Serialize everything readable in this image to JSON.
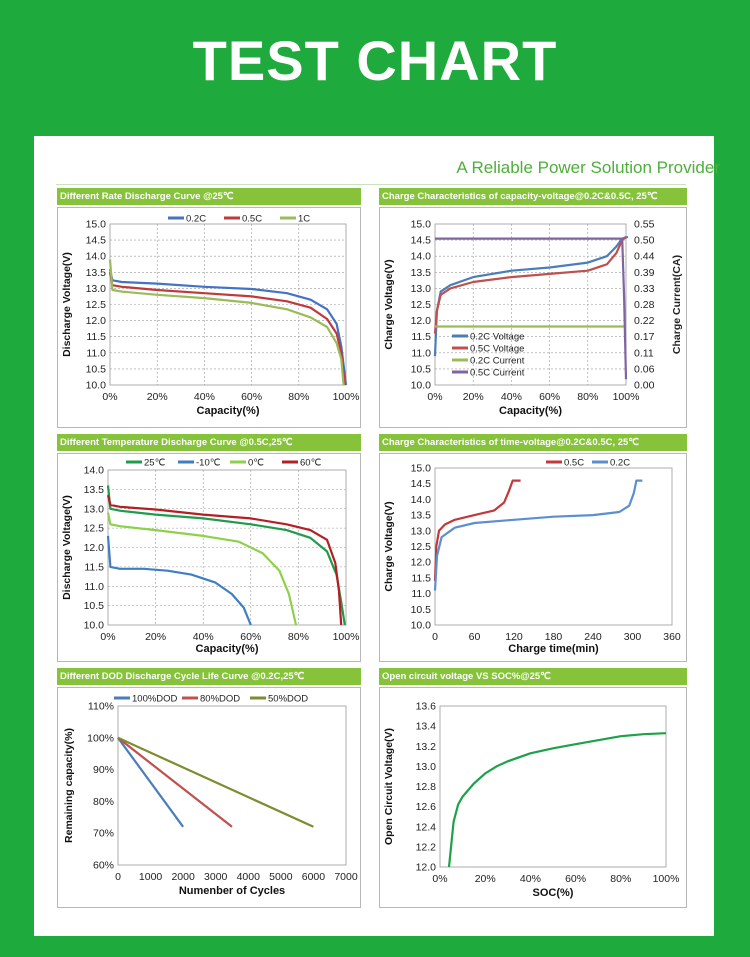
{
  "header": {
    "title": "TEST CHART"
  },
  "tagline": "A Reliable Power Solution Provider",
  "chart_data": [
    {
      "type": "line",
      "title": "Different Rate Discharge Curve @25℃",
      "xlabel": "Capacity(%)",
      "ylabel": "Discharge Voltage(V)",
      "xlim": [
        0,
        100
      ],
      "ylim": [
        10.0,
        15.0
      ],
      "xticks": [
        "0%",
        "20%",
        "40%",
        "60%",
        "80%",
        "100%"
      ],
      "yticks": [
        "10.0",
        "10.5",
        "11.0",
        "11.5",
        "12.0",
        "12.5",
        "13.0",
        "13.5",
        "14.0",
        "14.5",
        "15.0"
      ],
      "grid": true,
      "legend": "top",
      "series": [
        {
          "name": "0.2C",
          "color": "#4472c4",
          "points": [
            [
              0,
              13.6
            ],
            [
              1,
              13.25
            ],
            [
              5,
              13.2
            ],
            [
              20,
              13.15
            ],
            [
              40,
              13.05
            ],
            [
              60,
              12.98
            ],
            [
              75,
              12.85
            ],
            [
              85,
              12.65
            ],
            [
              92,
              12.35
            ],
            [
              96,
              11.9
            ],
            [
              98,
              11.2
            ],
            [
              100,
              10.0
            ]
          ]
        },
        {
          "name": "0.5C",
          "color": "#c0393b",
          "points": [
            [
              0,
              13.5
            ],
            [
              1,
              13.1
            ],
            [
              5,
              13.05
            ],
            [
              20,
              12.95
            ],
            [
              40,
              12.85
            ],
            [
              60,
              12.75
            ],
            [
              75,
              12.6
            ],
            [
              85,
              12.4
            ],
            [
              92,
              12.05
            ],
            [
              96,
              11.6
            ],
            [
              98,
              11.0
            ],
            [
              99.5,
              10.0
            ]
          ]
        },
        {
          "name": "1C",
          "color": "#9bbb59",
          "points": [
            [
              0,
              13.9
            ],
            [
              1,
              12.95
            ],
            [
              5,
              12.9
            ],
            [
              20,
              12.8
            ],
            [
              40,
              12.7
            ],
            [
              60,
              12.55
            ],
            [
              75,
              12.35
            ],
            [
              85,
              12.1
            ],
            [
              92,
              11.8
            ],
            [
              96,
              11.3
            ],
            [
              98,
              10.8
            ],
            [
              99,
              10.0
            ]
          ]
        }
      ]
    },
    {
      "type": "line",
      "title": "Charge  Characteristics of capacity-voltage@0.2C&0.5C, 25℃",
      "xlabel": "Capacity(%)",
      "ylabel": "Charge Voltage(V)",
      "y2label": "Charge Current(CA)",
      "xlim": [
        0,
        100
      ],
      "ylim": [
        10.0,
        15.0
      ],
      "y2lim": [
        0.0,
        0.55
      ],
      "xticks": [
        "0%",
        "20%",
        "40%",
        "60%",
        "80%",
        "100%"
      ],
      "yticks": [
        "10.0",
        "10.5",
        "11.0",
        "11.5",
        "12.0",
        "12.5",
        "13.0",
        "13.5",
        "14.0",
        "14.5",
        "15.0"
      ],
      "y2ticks": [
        "0.00",
        "0.06",
        "0.11",
        "0.17",
        "0.22",
        "0.28",
        "0.33",
        "0.39",
        "0.44",
        "0.50",
        "0.55"
      ],
      "grid": true,
      "legend": "center-left",
      "series": [
        {
          "name": "0.2C Voltage",
          "color": "#4a7ebb",
          "axis": "y",
          "points": [
            [
              0,
              10.9
            ],
            [
              1,
              12.3
            ],
            [
              3,
              12.9
            ],
            [
              8,
              13.1
            ],
            [
              20,
              13.35
            ],
            [
              40,
              13.55
            ],
            [
              60,
              13.65
            ],
            [
              80,
              13.8
            ],
            [
              90,
              14.0
            ],
            [
              95,
              14.3
            ],
            [
              98,
              14.55
            ],
            [
              101,
              14.6
            ]
          ]
        },
        {
          "name": "0.5C Voltage",
          "color": "#c0504d",
          "axis": "y",
          "points": [
            [
              0,
              11.6
            ],
            [
              1,
              12.3
            ],
            [
              3,
              12.8
            ],
            [
              8,
              13.0
            ],
            [
              20,
              13.2
            ],
            [
              40,
              13.35
            ],
            [
              60,
              13.45
            ],
            [
              80,
              13.55
            ],
            [
              90,
              13.75
            ],
            [
              95,
              14.1
            ],
            [
              98,
              14.5
            ],
            [
              100,
              14.6
            ]
          ]
        },
        {
          "name": "0.2C Current",
          "color": "#9bbb59",
          "axis": "y2",
          "points": [
            [
              0,
              0.2
            ],
            [
              99,
              0.2
            ]
          ]
        },
        {
          "name": "0.5C Current",
          "color": "#8064a2",
          "axis": "y2",
          "points": [
            [
              0,
              0.5
            ],
            [
              98,
              0.5
            ],
            [
              99,
              0.3
            ],
            [
              100,
              0.02
            ]
          ]
        }
      ]
    },
    {
      "type": "line",
      "title": "Different Temperature Discharge Curve @0.5C,25℃",
      "xlabel": "Capacity(%)",
      "ylabel": "Discharge Voltage(V)",
      "xlim": [
        0,
        100
      ],
      "ylim": [
        10.0,
        14.0
      ],
      "xticks": [
        "0%",
        "20%",
        "40%",
        "60%",
        "80%",
        "100%"
      ],
      "yticks": [
        "10.0",
        "10.5",
        "11.0",
        "11.5",
        "12.0",
        "12.5",
        "13.0",
        "13.5",
        "14.0"
      ],
      "grid": true,
      "legend": "top",
      "series": [
        {
          "name": "25℃",
          "color": "#1f9b4c",
          "points": [
            [
              0,
              13.6
            ],
            [
              1,
              13.0
            ],
            [
              5,
              12.95
            ],
            [
              20,
              12.85
            ],
            [
              40,
              12.75
            ],
            [
              60,
              12.6
            ],
            [
              75,
              12.45
            ],
            [
              85,
              12.25
            ],
            [
              92,
              11.9
            ],
            [
              96,
              11.3
            ],
            [
              98,
              10.6
            ],
            [
              99.5,
              10.0
            ]
          ]
        },
        {
          "name": "-10℃",
          "color": "#3e7fc4",
          "points": [
            [
              0,
              12.3
            ],
            [
              1,
              11.5
            ],
            [
              5,
              11.45
            ],
            [
              15,
              11.45
            ],
            [
              25,
              11.4
            ],
            [
              35,
              11.3
            ],
            [
              45,
              11.1
            ],
            [
              52,
              10.8
            ],
            [
              57,
              10.45
            ],
            [
              60,
              10.0
            ]
          ]
        },
        {
          "name": "0℃",
          "color": "#8fd04a",
          "points": [
            [
              0,
              12.9
            ],
            [
              1,
              12.6
            ],
            [
              5,
              12.55
            ],
            [
              20,
              12.45
            ],
            [
              40,
              12.3
            ],
            [
              55,
              12.15
            ],
            [
              65,
              11.85
            ],
            [
              72,
              11.4
            ],
            [
              76,
              10.8
            ],
            [
              79,
              10.0
            ]
          ]
        },
        {
          "name": "60℃",
          "color": "#b41f24",
          "points": [
            [
              0,
              13.35
            ],
            [
              1,
              13.1
            ],
            [
              5,
              13.05
            ],
            [
              20,
              12.98
            ],
            [
              40,
              12.85
            ],
            [
              60,
              12.75
            ],
            [
              75,
              12.6
            ],
            [
              85,
              12.45
            ],
            [
              92,
              12.2
            ],
            [
              95.5,
              11.6
            ],
            [
              97,
              10.9
            ],
            [
              98,
              10.0
            ]
          ]
        }
      ]
    },
    {
      "type": "line",
      "title": "Charge  Characteristics of time-voltage@0.2C&0.5C, 25℃",
      "xlabel": "Charge time(min)",
      "ylabel": "Charge Voltage(V)",
      "xlim": [
        0,
        360
      ],
      "ylim": [
        10.0,
        15.0
      ],
      "xticks": [
        "0",
        "60",
        "120",
        "180",
        "240",
        "300",
        "360"
      ],
      "yticks": [
        "10.0",
        "10.5",
        "11.0",
        "11.5",
        "12.0",
        "12.5",
        "13.0",
        "13.5",
        "14.0",
        "14.5",
        "15.0"
      ],
      "grid": false,
      "legend": "top",
      "series": [
        {
          "name": "0.5C",
          "color": "#c0393b",
          "points": [
            [
              0,
              11.4
            ],
            [
              2,
              12.5
            ],
            [
              6,
              13.0
            ],
            [
              15,
              13.2
            ],
            [
              30,
              13.35
            ],
            [
              60,
              13.5
            ],
            [
              90,
              13.65
            ],
            [
              105,
              13.9
            ],
            [
              112,
              14.25
            ],
            [
              118,
              14.6
            ],
            [
              130,
              14.6
            ]
          ]
        },
        {
          "name": "0.2C",
          "color": "#5b8fd0",
          "points": [
            [
              0,
              11.1
            ],
            [
              3,
              12.2
            ],
            [
              10,
              12.8
            ],
            [
              30,
              13.1
            ],
            [
              60,
              13.25
            ],
            [
              120,
              13.35
            ],
            [
              180,
              13.45
            ],
            [
              240,
              13.5
            ],
            [
              280,
              13.6
            ],
            [
              295,
              13.8
            ],
            [
              302,
              14.2
            ],
            [
              306,
              14.6
            ],
            [
              315,
              14.6
            ]
          ]
        }
      ]
    },
    {
      "type": "line",
      "title": "Different DOD Discharge Cycle Life Curve @0.2C,25℃",
      "xlabel": "Numenber of Cycles",
      "ylabel": "Remaining capacity(%)",
      "xlim": [
        0,
        7000
      ],
      "ylim": [
        60,
        110
      ],
      "xticks": [
        "0",
        "1000",
        "2000",
        "3000",
        "4000",
        "5000",
        "6000",
        "7000"
      ],
      "yticks": [
        "60%",
        "70%",
        "80%",
        "90%",
        "100%",
        "110%"
      ],
      "grid": false,
      "legend": "top",
      "series": [
        {
          "name": "100%DOD",
          "color": "#4a7ebb",
          "points": [
            [
              0,
              100
            ],
            [
              2000,
              72
            ]
          ]
        },
        {
          "name": "80%DOD",
          "color": "#c0504d",
          "points": [
            [
              0,
              100
            ],
            [
              3500,
              72
            ]
          ]
        },
        {
          "name": "50%DOD",
          "color": "#7f8b2f",
          "points": [
            [
              0,
              100
            ],
            [
              6000,
              72
            ]
          ]
        }
      ]
    },
    {
      "type": "line",
      "title": "Open circuit voltage VS SOC%@25℃",
      "xlabel": "SOC(%)",
      "ylabel": "Open Circuit Voltage(V)",
      "xlim": [
        0,
        100
      ],
      "ylim": [
        12.0,
        13.6
      ],
      "xticks": [
        "0%",
        "20%",
        "40%",
        "60%",
        "80%",
        "100%"
      ],
      "yticks": [
        "12.0",
        "12.2",
        "12.4",
        "12.6",
        "12.8",
        "13.0",
        "13.2",
        "13.4",
        "13.6"
      ],
      "grid": false,
      "legend": "none",
      "series": [
        {
          "name": "",
          "color": "#1fa04a",
          "points": [
            [
              4,
              12.0
            ],
            [
              6,
              12.45
            ],
            [
              8,
              12.62
            ],
            [
              10,
              12.7
            ],
            [
              15,
              12.83
            ],
            [
              20,
              12.93
            ],
            [
              25,
              13.0
            ],
            [
              30,
              13.05
            ],
            [
              40,
              13.13
            ],
            [
              50,
              13.18
            ],
            [
              60,
              13.22
            ],
            [
              70,
              13.26
            ],
            [
              80,
              13.3
            ],
            [
              90,
              13.32
            ],
            [
              100,
              13.33
            ]
          ]
        }
      ]
    }
  ]
}
